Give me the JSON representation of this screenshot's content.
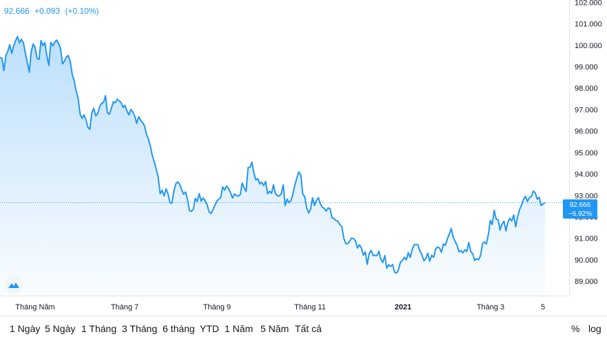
{
  "legend": {
    "price": "92.666",
    "change": "+0.093",
    "change_pct": "(+0.10%)"
  },
  "colors": {
    "line": "#2196f3",
    "axis_text": "#131722",
    "grid_border": "#e0e3eb",
    "badge": "#2196f3"
  },
  "price_badge": {
    "value": "92.666",
    "pct": "−6.92%"
  },
  "range_buttons": [
    "1 Ngày",
    "5 Ngày",
    "1 Tháng",
    "3 Tháng",
    "6 tháng",
    "YTD",
    "1 Năm",
    "5 Năm",
    "Tất cả"
  ],
  "scale_buttons": {
    "percent": "%",
    "log": "log"
  },
  "logo_icon": "tradingview-cloud-icon",
  "chart_data": {
    "type": "area",
    "title": "",
    "xlabel": "",
    "ylabel": "",
    "ylim": [
      88.333,
      102.107
    ],
    "y_ticks": [
      "102.000",
      "101.000",
      "100.000",
      "99.000",
      "98.000",
      "97.000",
      "96.000",
      "95.000",
      "94.000",
      "93.000",
      "92.000",
      "91.000",
      "90.000",
      "89.000"
    ],
    "x_ticks": [
      {
        "label": "Tháng Năm",
        "bold": false
      },
      {
        "label": "Tháng 7",
        "bold": false
      },
      {
        "label": "Tháng 9",
        "bold": false
      },
      {
        "label": "Tháng 11",
        "bold": false
      },
      {
        "label": "2021",
        "bold": true
      },
      {
        "label": "Tháng 3",
        "bold": false
      },
      {
        "label": "5",
        "bold": false
      }
    ],
    "grid": false,
    "current_value": 92.666,
    "series": [
      {
        "values": [
          99.43,
          99.39,
          98.82,
          99.52,
          99.72,
          100.03,
          99.62,
          99.97,
          100.22,
          100.4,
          100.11,
          100.28,
          100.11,
          99.62,
          99.2,
          98.74,
          99.72,
          100.06,
          99.89,
          99.38,
          99.34,
          100.22,
          99.98,
          100.12,
          99.51,
          99.06,
          100.13,
          99.97,
          100.13,
          100.24,
          100.08,
          99.85,
          99.13,
          99.26,
          99.46,
          99.52,
          99.21,
          98.63,
          98.34,
          97.86,
          97.52,
          96.8,
          96.59,
          96.76,
          96.52,
          96.18,
          96.08,
          96.85,
          97.06,
          96.71,
          96.81,
          97.13,
          97.29,
          97.34,
          97.65,
          96.86,
          96.79,
          97.06,
          97.36,
          97.32,
          97.48,
          97.41,
          97.33,
          97.1,
          97.2,
          96.94,
          96.75,
          97.01,
          96.89,
          96.69,
          96.36,
          96.67,
          96.51,
          96.4,
          96.24,
          95.84,
          95.63,
          95.29,
          94.85,
          94.56,
          94.21,
          93.84,
          93.08,
          93.24,
          92.98,
          93.31,
          93.08,
          92.67,
          92.64,
          93.2,
          93.54,
          93.63,
          93.52,
          93.26,
          93.06,
          93.16,
          92.81,
          92.29,
          92.26,
          92.37,
          92.87,
          92.72,
          93.09,
          92.73,
          92.89,
          92.74,
          92.58,
          92.24,
          92.16,
          92.33,
          92.54,
          92.73,
          92.83,
          92.9,
          93.4,
          93.25,
          93.44,
          93.32,
          93.13,
          92.88,
          93.07,
          93.0,
          92.97,
          93.04,
          93.58,
          93.35,
          93.19,
          94.3,
          94.31,
          94.55,
          94.04,
          93.72,
          93.78,
          93.53,
          93.63,
          93.46,
          93.65,
          93.08,
          93.2,
          93.1,
          93.5,
          93.09,
          92.99,
          92.97,
          93.09,
          93.49,
          92.53,
          92.83,
          92.66,
          92.77,
          93.09,
          93.5,
          93.83,
          94.1,
          93.95,
          93.07,
          92.94,
          92.42,
          92.18,
          92.37,
          92.89,
          92.53,
          92.77,
          92.9,
          92.61,
          92.45,
          92.4,
          92.27,
          92.42,
          92.37,
          91.95,
          91.93,
          91.83,
          91.8,
          91.64,
          91.54,
          91.01,
          90.75,
          90.75,
          90.88,
          91.01,
          90.99,
          90.88,
          90.55,
          90.7,
          90.56,
          90.22,
          90.37,
          89.79,
          90.29,
          90.44,
          90.2,
          90.21,
          90.2,
          90.4,
          90.02,
          89.88,
          90.2,
          89.61,
          89.77,
          89.69,
          89.78,
          89.43,
          89.38,
          89.54,
          89.9,
          89.97,
          90.12,
          90.0,
          90.34,
          90.11,
          90.47,
          90.7,
          90.72,
          90.69,
          90.4,
          90.24,
          89.95,
          90.06,
          90.31,
          89.94,
          90.21,
          90.12,
          90.5,
          90.6,
          90.55,
          90.36,
          90.74,
          90.68,
          90.97,
          91.19,
          91.46,
          91.05,
          90.86,
          90.67,
          90.38,
          90.42,
          90.33,
          90.47,
          90.39,
          90.81,
          90.38,
          90.29,
          89.97,
          90.06,
          90.0,
          90.2,
          90.75,
          90.83,
          90.74,
          91.18,
          91.84,
          91.65,
          92.31,
          91.89,
          91.87,
          91.38,
          91.67,
          91.8,
          91.35,
          91.75,
          91.94,
          91.81,
          92.1,
          91.54,
          92.0,
          92.34,
          92.56,
          92.81,
          92.96,
          92.72,
          92.9,
          92.95,
          93.2,
          93.13,
          92.83,
          92.92,
          92.53,
          92.6,
          92.67
        ]
      }
    ]
  }
}
